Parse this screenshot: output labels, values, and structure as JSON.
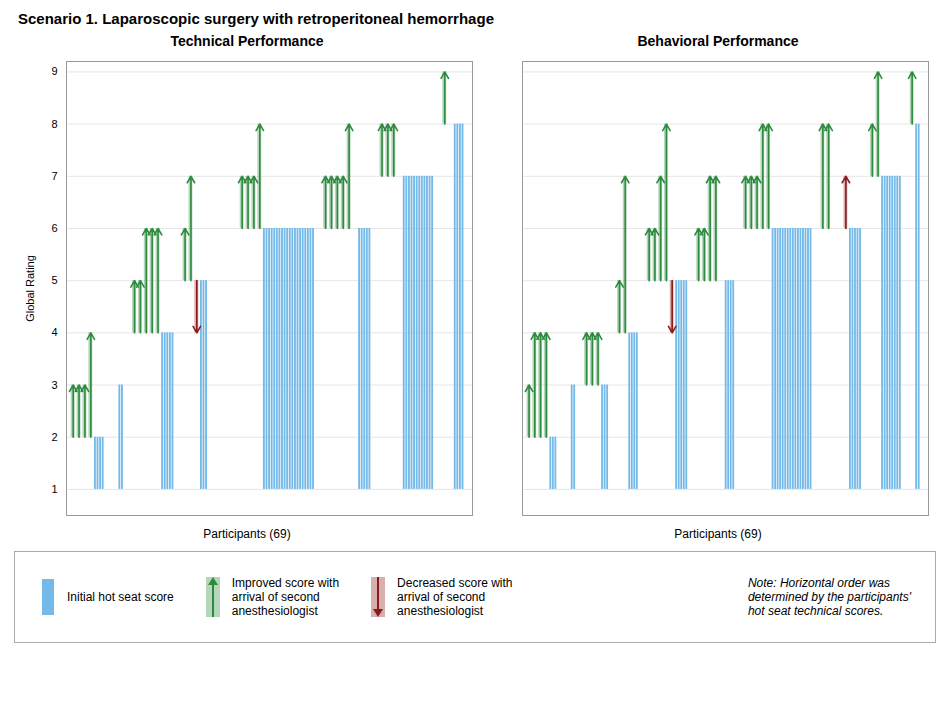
{
  "chart_data": {
    "type": "arrow_bar",
    "title": "Scenario 1. Laparoscopic surgery with retroperitoneal hemorrhage",
    "xlabel": "Participants (69)",
    "ylim": [
      0.5,
      9.2
    ],
    "yticks": [
      1,
      2,
      3,
      4,
      5,
      6,
      7,
      8,
      9
    ],
    "grid": true,
    "series": [
      {
        "name": "Initial hot seat score",
        "color": "#74b9e8"
      },
      {
        "name": "Improved score with\narrival of second\nanesthesiologist",
        "color": "#2d8a3e"
      },
      {
        "name": "Decreased score with\narrival of second\nanesthesiologist",
        "color": "#8b1a1a"
      }
    ],
    "annotation": "Note: Horizontal order was\ndetermined by the participants'\nhot seat technical scores.",
    "panels": [
      {
        "title": "Technical Performance",
        "ylabel": "Global Rating",
        "tick_labels": "y",
        "groups": [
          {
            "base": 2,
            "improved": [
              3,
              3,
              3,
              4
            ],
            "decreased": [],
            "initial_count": 4
          },
          {
            "base": 3,
            "improved": [],
            "decreased": [
              3
            ],
            "initial_count": 2
          },
          {
            "base": 4,
            "improved": [
              5,
              5,
              6,
              6,
              6
            ],
            "decreased": [],
            "initial_count": 5
          },
          {
            "base": 5,
            "improved": [
              6,
              7
            ],
            "decreased": [
              4
            ],
            "initial_count": 3
          },
          {
            "base": 6,
            "improved": [
              6,
              6,
              6,
              6,
              7,
              7,
              7,
              8
            ],
            "decreased": [],
            "initial_count": 20
          },
          {
            "base": 6,
            "improved": [
              7,
              7,
              7,
              7,
              8
            ],
            "decreased": [
              6
            ],
            "initial_count": 5
          },
          {
            "base": 7,
            "improved": [
              8,
              8,
              8
            ],
            "decreased": [
              7
            ],
            "initial_count": 12
          },
          {
            "base": 8,
            "improved": [
              9
            ],
            "decreased": [
              8
            ],
            "initial_count": 4
          }
        ]
      },
      {
        "title": "Behavioral Performance",
        "tick_labels": false,
        "groups": [
          {
            "base": 2,
            "improved": [
              3,
              4,
              4,
              4
            ],
            "decreased": [],
            "initial_count": 3
          },
          {
            "base": 3,
            "improved": [],
            "decreased": [
              3
            ],
            "initial_count": 2
          },
          {
            "base": 3,
            "improved": [
              4,
              4,
              4
            ],
            "decreased": [],
            "initial_count": 3
          },
          {
            "base": 4,
            "improved": [
              5,
              7
            ],
            "decreased": [],
            "initial_count": 4
          },
          {
            "base": 5,
            "improved": [
              6,
              6,
              7,
              8
            ],
            "decreased": [
              4
            ],
            "initial_count": 5
          },
          {
            "base": 5,
            "improved": [
              6,
              6,
              7,
              7
            ],
            "decreased": [
              5
            ],
            "initial_count": 4
          },
          {
            "base": 6,
            "improved": [
              7,
              7,
              7,
              8,
              8
            ],
            "decreased": [],
            "initial_count": 16
          },
          {
            "base": 6,
            "improved": [
              8,
              8
            ],
            "decreased": [
              6,
              6,
              7
            ],
            "initial_count": 5
          },
          {
            "base": 7,
            "improved": [
              8,
              9
            ],
            "decreased": [],
            "initial_count": 8
          },
          {
            "base": 8,
            "improved": [
              9
            ],
            "decreased": [],
            "initial_count": 2
          }
        ]
      }
    ]
  }
}
